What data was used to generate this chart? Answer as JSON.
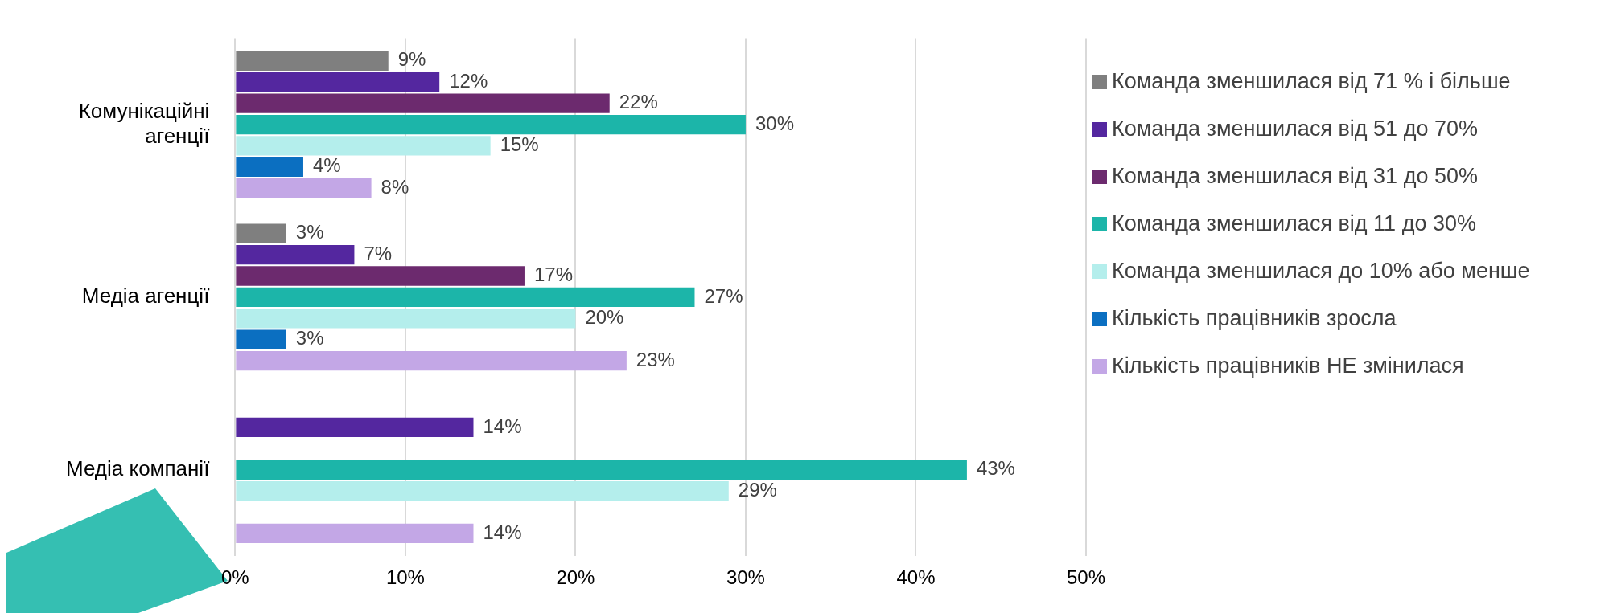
{
  "chart_data": {
    "type": "bar",
    "orientation": "horizontal",
    "categories": [
      "Комунікаційні агенції",
      "Медіа агенції",
      "Медіа компанії"
    ],
    "series": [
      {
        "name": "Команда зменшилася від 71 % і більше",
        "color": "#7f7f7f",
        "values": [
          9,
          3,
          null
        ],
        "value_labels": [
          "9%",
          "3%",
          null
        ]
      },
      {
        "name": "Команда зменшилася від 51 до 70%",
        "color": "#54279f",
        "values": [
          12,
          7,
          14
        ],
        "value_labels": [
          "12%",
          "7%",
          "14%"
        ]
      },
      {
        "name": "Команда зменшилася від 31 до 50%",
        "color": "#6c2a6e",
        "values": [
          22,
          17,
          null
        ],
        "value_labels": [
          "22%",
          "17%",
          null
        ]
      },
      {
        "name": "Команда зменшилася від 11 до 30%",
        "color": "#1cb5a9",
        "values": [
          30,
          27,
          43
        ],
        "value_labels": [
          "30%",
          "27%",
          "43%"
        ]
      },
      {
        "name": "Команда зменшилася до 10% або менше",
        "color": "#b4eeec",
        "values": [
          15,
          20,
          29
        ],
        "value_labels": [
          "15%",
          "20%",
          "29%"
        ]
      },
      {
        "name": "Кількість працівників зросла",
        "color": "#0b6fc1",
        "values": [
          4,
          3,
          null
        ],
        "value_labels": [
          "4%",
          "3%",
          null
        ]
      },
      {
        "name": "Кількість працівників НЕ змінилася",
        "color": "#c3a7e6",
        "values": [
          8,
          23,
          14
        ],
        "value_labels": [
          "8%",
          "23%",
          "14%"
        ]
      }
    ],
    "xlim": [
      0,
      50
    ],
    "xticks": [
      {
        "value": 0,
        "label": "0%"
      },
      {
        "value": 10,
        "label": "10%"
      },
      {
        "value": 20,
        "label": "20%"
      },
      {
        "value": 30,
        "label": "30%"
      },
      {
        "value": 40,
        "label": "40%"
      },
      {
        "value": 50,
        "label": "50%"
      }
    ],
    "grid": "x",
    "legend": "right"
  }
}
